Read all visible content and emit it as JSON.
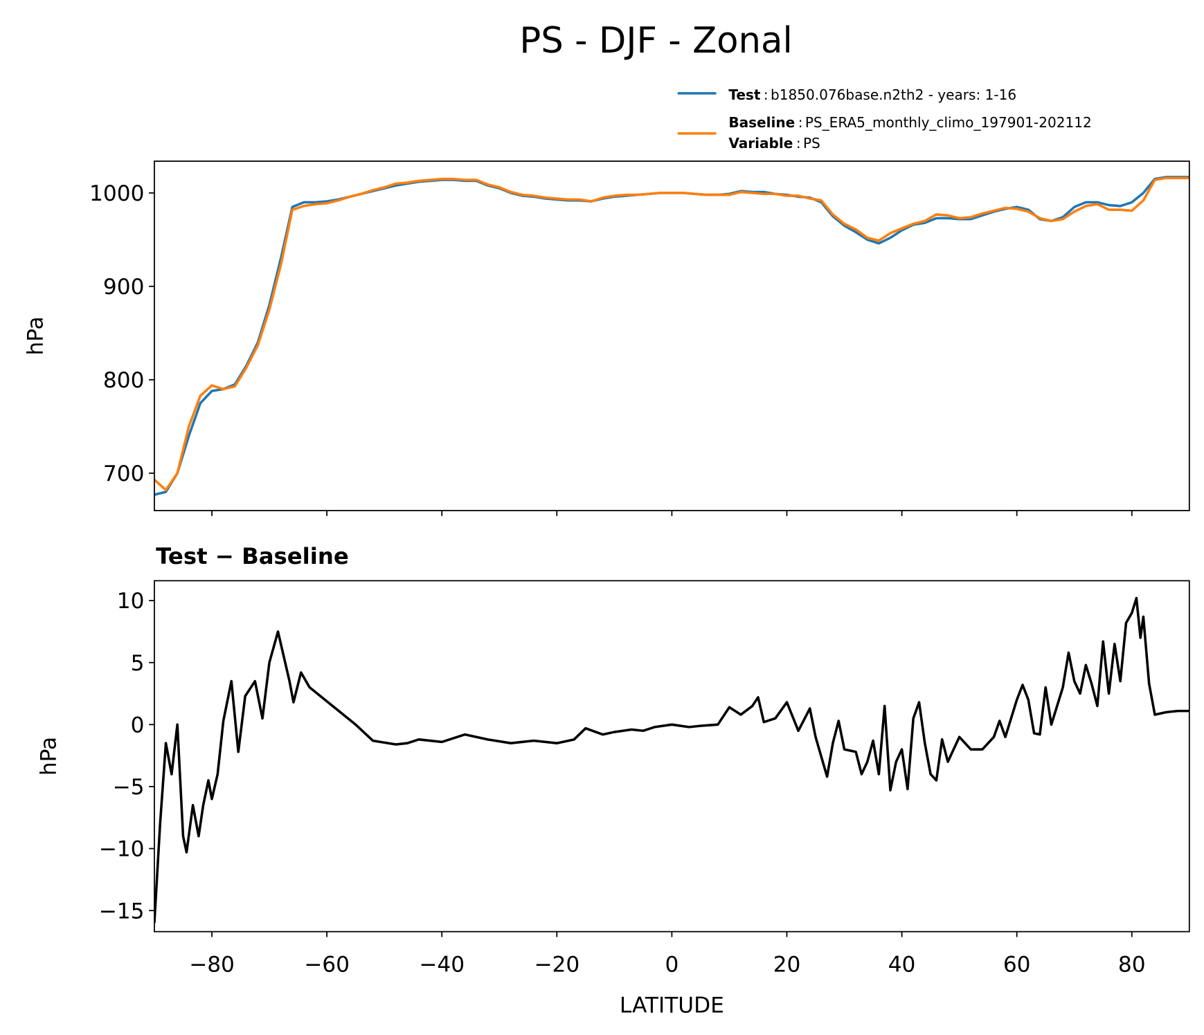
{
  "chart_data": [
    {
      "type": "line",
      "title": "PS - DJF - Zonal",
      "ylabel": "hPa",
      "x": [
        -90,
        -88,
        -86,
        -84,
        -82,
        -80,
        -78,
        -76,
        -74,
        -72,
        -70,
        -68,
        -66,
        -64,
        -62,
        -60,
        -58,
        -56,
        -54,
        -52,
        -50,
        -48,
        -46,
        -44,
        -42,
        -40,
        -38,
        -36,
        -34,
        -32,
        -30,
        -28,
        -26,
        -24,
        -22,
        -20,
        -18,
        -16,
        -14,
        -12,
        -10,
        -8,
        -6,
        -4,
        -2,
        0,
        2,
        4,
        6,
        8,
        10,
        12,
        14,
        16,
        18,
        20,
        22,
        24,
        26,
        28,
        30,
        32,
        34,
        36,
        38,
        40,
        42,
        44,
        46,
        48,
        50,
        52,
        54,
        56,
        58,
        60,
        62,
        64,
        66,
        68,
        70,
        72,
        74,
        76,
        78,
        80,
        82,
        84,
        86,
        88,
        90
      ],
      "series": [
        {
          "name": "Test",
          "label": "b1850.076base.n2th2 - years: 1-16",
          "color": "#1f77b4",
          "values": [
            677,
            680,
            700,
            740,
            775,
            788,
            790,
            795,
            815,
            840,
            880,
            930,
            985,
            990,
            990,
            991,
            993,
            996,
            999,
            1002,
            1005,
            1008,
            1010,
            1012,
            1013,
            1014,
            1014,
            1013,
            1013,
            1008,
            1005,
            1000,
            997,
            996,
            994,
            993,
            992,
            992,
            991,
            994,
            996,
            997,
            998,
            999,
            1000,
            1000,
            1000,
            999,
            998,
            998,
            999,
            1002,
            1001,
            1001,
            999,
            998,
            996,
            995,
            990,
            975,
            965,
            958,
            950,
            946,
            952,
            960,
            966,
            968,
            973,
            973,
            972,
            972,
            976,
            980,
            983,
            985,
            982,
            972,
            970,
            974,
            985,
            990,
            990,
            987,
            986,
            990,
            1000,
            1015,
            1017,
            1017,
            1017
          ]
        },
        {
          "name": "Baseline",
          "label": "PS_ERA5_monthly_climo_197901-202112",
          "color": "#ff7f0e",
          "values": [
            693,
            682,
            700,
            750,
            783,
            794,
            790,
            793,
            813,
            837,
            875,
            923,
            982,
            986,
            988,
            989,
            992,
            996,
            999,
            1003,
            1006,
            1010,
            1011,
            1013,
            1014,
            1015,
            1015,
            1014,
            1014,
            1009,
            1006,
            1001,
            998,
            997,
            995,
            994,
            993,
            993,
            991,
            995,
            997,
            998,
            998,
            999,
            1000,
            1000,
            1000,
            999,
            998,
            998,
            998,
            1001,
            1000,
            999,
            999,
            997,
            997,
            994,
            992,
            977,
            967,
            961,
            952,
            949,
            957,
            962,
            967,
            970,
            977,
            976,
            973,
            974,
            978,
            981,
            984,
            983,
            980,
            973,
            970,
            972,
            980,
            986,
            988,
            982,
            982,
            981,
            992,
            1014,
            1016,
            1016,
            1016
          ]
        }
      ],
      "legend_note": {
        "name": "Variable",
        "label": "PS"
      },
      "legend_separator": ":",
      "xlim": [
        -90,
        90
      ],
      "xticks": [
        -80,
        -60,
        -40,
        -20,
        0,
        20,
        40,
        60,
        80
      ],
      "ylim": [
        660,
        1034
      ],
      "yticks": [
        700,
        800,
        900,
        1000
      ]
    },
    {
      "type": "line",
      "title": "Test − Baseline",
      "ylabel": "hPa",
      "xlabel": "LATITUDE",
      "x": [
        -90,
        -89,
        -88,
        -87,
        -86,
        -85,
        -84.4,
        -83.3,
        -82.3,
        -81.5,
        -80.6,
        -80,
        -79,
        -78,
        -76.6,
        -75.4,
        -74.2,
        -72.5,
        -71.2,
        -70,
        -68.5,
        -66.5,
        -65.8,
        -64.5,
        -63,
        -55,
        -52,
        -48,
        -46,
        -44,
        -40,
        -36,
        -32,
        -28,
        -24,
        -20,
        -17,
        -15,
        -12,
        -10,
        -7,
        -5,
        -3,
        0,
        3,
        5,
        8,
        10,
        12,
        14,
        15,
        16,
        18,
        20,
        22,
        24,
        25,
        27,
        28,
        29,
        30,
        32,
        33,
        34,
        35,
        36,
        37,
        38,
        39,
        40,
        41,
        42,
        43,
        44,
        45,
        46,
        47,
        48,
        50,
        52,
        54,
        56,
        57,
        58,
        60,
        61,
        62,
        63,
        64,
        65,
        66,
        68,
        69,
        70,
        71,
        72,
        73,
        74,
        75,
        76,
        77,
        78,
        79,
        80,
        80.8,
        81.5,
        82,
        83,
        84,
        86,
        88,
        90
      ],
      "values": [
        -16,
        -8,
        -1.5,
        -4,
        0,
        -9,
        -10.3,
        -6.5,
        -9,
        -6.5,
        -4.5,
        -6,
        -4,
        0.3,
        3.5,
        -2.2,
        2.3,
        3.5,
        0.5,
        5,
        7.5,
        3.5,
        1.8,
        4.2,
        3,
        0,
        -1.3,
        -1.6,
        -1.5,
        -1.2,
        -1.4,
        -0.8,
        -1.2,
        -1.5,
        -1.3,
        -1.5,
        -1.2,
        -0.3,
        -0.8,
        -0.6,
        -0.4,
        -0.5,
        -0.2,
        0,
        -0.2,
        -0.1,
        0,
        1.4,
        0.8,
        1.5,
        2.2,
        0.2,
        0.5,
        1.8,
        -0.5,
        1.3,
        -1,
        -4.2,
        -1.5,
        0.3,
        -2,
        -2.2,
        -4,
        -3,
        -1.3,
        -4,
        1.5,
        -5.3,
        -3,
        -2,
        -5.2,
        0.5,
        1.8,
        -1.5,
        -4,
        -4.5,
        -1.2,
        -3,
        -1,
        -2,
        -2,
        -1,
        0.3,
        -1,
        2,
        3.2,
        2,
        -0.7,
        -0.8,
        3,
        0,
        3,
        5.8,
        3.5,
        2.5,
        4.8,
        3.3,
        1.5,
        6.7,
        2.5,
        6.5,
        3.5,
        8.2,
        9,
        10.2,
        7,
        8.7,
        3.3,
        0.8,
        1,
        1.1,
        1.1
      ],
      "color": "#000000",
      "xlim": [
        -90,
        90
      ],
      "xticks": [
        {
          "value": -80,
          "label": "−80"
        },
        {
          "value": -60,
          "label": "−60"
        },
        {
          "value": -40,
          "label": "−40"
        },
        {
          "value": -20,
          "label": "−20"
        },
        0,
        20,
        40,
        60,
        80
      ],
      "ylim": [
        -16.7,
        11.6
      ],
      "yticks": [
        {
          "value": -15,
          "label": "−15"
        },
        {
          "value": -10,
          "label": "−10"
        },
        {
          "value": -5,
          "label": "−5"
        },
        0,
        5,
        10
      ]
    }
  ]
}
